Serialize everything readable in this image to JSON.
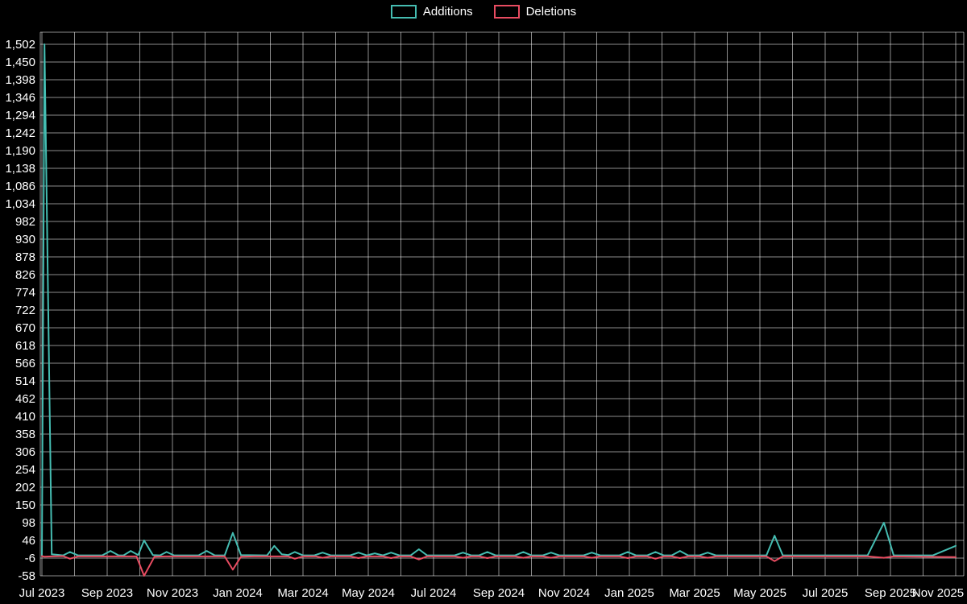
{
  "chart_data": {
    "type": "line",
    "title": "",
    "background": "#000000",
    "text_color": "#ffffff",
    "grid": true,
    "grid_color": "rgba(255,255,255,0.55)",
    "legend_position": "top-center",
    "x_unit": "months since Jul 2023 (weekly commit data)",
    "xlim": [
      0,
      28
    ],
    "ylim": [
      -58,
      1502
    ],
    "y_tick_step": 52,
    "y_ticks": [
      -58,
      -6,
      46,
      98,
      150,
      202,
      254,
      306,
      358,
      410,
      462,
      514,
      566,
      618,
      670,
      722,
      774,
      826,
      878,
      930,
      982,
      1034,
      1086,
      1138,
      1190,
      1242,
      1294,
      1346,
      1398,
      1450,
      1502
    ],
    "x_ticks": [
      {
        "t": 0,
        "label": "Jul 2023"
      },
      {
        "t": 2,
        "label": "Sep 2023"
      },
      {
        "t": 4,
        "label": "Nov 2023"
      },
      {
        "t": 6,
        "label": "Jan 2024"
      },
      {
        "t": 8,
        "label": "Mar 2024"
      },
      {
        "t": 10,
        "label": "May 2024"
      },
      {
        "t": 12,
        "label": "Jul 2024"
      },
      {
        "t": 14,
        "label": "Sep 2024"
      },
      {
        "t": 16,
        "label": "Nov 2024"
      },
      {
        "t": 18,
        "label": "Jan 2025"
      },
      {
        "t": 20,
        "label": "Mar 2025"
      },
      {
        "t": 22,
        "label": "May 2025"
      },
      {
        "t": 24,
        "label": "Jul 2025"
      },
      {
        "t": 26,
        "label": "Sep 2025"
      },
      {
        "t": 28,
        "label": "Nov 2025"
      }
    ],
    "series": [
      {
        "name": "Additions",
        "color": "#45bcb1",
        "points": [
          [
            0.0,
            2
          ],
          [
            0.08,
            1502
          ],
          [
            0.3,
            5
          ],
          [
            0.65,
            2
          ],
          [
            0.86,
            12
          ],
          [
            1.1,
            2
          ],
          [
            1.85,
            2
          ],
          [
            2.1,
            15
          ],
          [
            2.35,
            2
          ],
          [
            2.5,
            2
          ],
          [
            2.72,
            15
          ],
          [
            2.95,
            3
          ],
          [
            3.13,
            46
          ],
          [
            3.4,
            3
          ],
          [
            3.62,
            2
          ],
          [
            3.82,
            12
          ],
          [
            4.05,
            2
          ],
          [
            4.8,
            2
          ],
          [
            5.05,
            15
          ],
          [
            5.3,
            2
          ],
          [
            5.6,
            2
          ],
          [
            5.85,
            68
          ],
          [
            6.1,
            3
          ],
          [
            6.9,
            2
          ],
          [
            7.12,
            30
          ],
          [
            7.35,
            5
          ],
          [
            7.55,
            3
          ],
          [
            7.75,
            12
          ],
          [
            8.0,
            2
          ],
          [
            8.35,
            2
          ],
          [
            8.6,
            10
          ],
          [
            8.85,
            2
          ],
          [
            9.45,
            2
          ],
          [
            9.7,
            10
          ],
          [
            9.95,
            2
          ],
          [
            10.2,
            8
          ],
          [
            10.45,
            2
          ],
          [
            10.7,
            10
          ],
          [
            10.95,
            2
          ],
          [
            11.3,
            2
          ],
          [
            11.55,
            20
          ],
          [
            11.8,
            2
          ],
          [
            12.65,
            2
          ],
          [
            12.9,
            10
          ],
          [
            13.15,
            2
          ],
          [
            13.4,
            2
          ],
          [
            13.65,
            12
          ],
          [
            13.9,
            2
          ],
          [
            14.5,
            2
          ],
          [
            14.75,
            12
          ],
          [
            15.0,
            2
          ],
          [
            15.35,
            2
          ],
          [
            15.6,
            10
          ],
          [
            15.85,
            2
          ],
          [
            16.6,
            2
          ],
          [
            16.85,
            10
          ],
          [
            17.1,
            2
          ],
          [
            17.7,
            2
          ],
          [
            17.95,
            12
          ],
          [
            18.2,
            2
          ],
          [
            18.55,
            2
          ],
          [
            18.8,
            12
          ],
          [
            19.05,
            2
          ],
          [
            19.3,
            2
          ],
          [
            19.55,
            15
          ],
          [
            19.8,
            2
          ],
          [
            20.15,
            2
          ],
          [
            20.4,
            10
          ],
          [
            20.65,
            2
          ],
          [
            21.0,
            2
          ],
          [
            22.2,
            2
          ],
          [
            22.45,
            60
          ],
          [
            22.7,
            2
          ],
          [
            24.0,
            2
          ],
          [
            25.3,
            2
          ],
          [
            25.8,
            98
          ],
          [
            26.1,
            2
          ],
          [
            27.3,
            2
          ],
          [
            28.0,
            30
          ]
        ]
      },
      {
        "name": "Deletions",
        "color": "#e84c61",
        "points": [
          [
            0.0,
            0
          ],
          [
            0.08,
            -2
          ],
          [
            0.3,
            -1
          ],
          [
            0.65,
            0
          ],
          [
            0.86,
            -8
          ],
          [
            1.1,
            -1
          ],
          [
            2.9,
            -1
          ],
          [
            3.13,
            -58
          ],
          [
            3.45,
            -2
          ],
          [
            3.8,
            -1
          ],
          [
            5.6,
            -1
          ],
          [
            5.85,
            -40
          ],
          [
            6.1,
            -2
          ],
          [
            6.5,
            -1
          ],
          [
            7.55,
            -1
          ],
          [
            7.75,
            -8
          ],
          [
            8.0,
            -1
          ],
          [
            8.4,
            -1
          ],
          [
            8.6,
            -5
          ],
          [
            8.85,
            -1
          ],
          [
            9.45,
            -1
          ],
          [
            9.7,
            -6
          ],
          [
            9.95,
            -1
          ],
          [
            10.45,
            -1
          ],
          [
            10.7,
            -6
          ],
          [
            10.95,
            -1
          ],
          [
            11.3,
            -1
          ],
          [
            11.55,
            -10
          ],
          [
            11.8,
            -1
          ],
          [
            12.65,
            -1
          ],
          [
            12.9,
            -5
          ],
          [
            13.15,
            -1
          ],
          [
            13.4,
            -1
          ],
          [
            13.65,
            -6
          ],
          [
            13.9,
            -1
          ],
          [
            14.5,
            -1
          ],
          [
            14.75,
            -5
          ],
          [
            15.0,
            -1
          ],
          [
            15.35,
            -1
          ],
          [
            15.6,
            -5
          ],
          [
            15.85,
            -1
          ],
          [
            16.6,
            -1
          ],
          [
            16.85,
            -5
          ],
          [
            17.1,
            -1
          ],
          [
            17.7,
            -1
          ],
          [
            17.95,
            -6
          ],
          [
            18.2,
            -1
          ],
          [
            18.55,
            -1
          ],
          [
            18.8,
            -8
          ],
          [
            19.05,
            -1
          ],
          [
            19.3,
            -1
          ],
          [
            19.55,
            -6
          ],
          [
            19.8,
            -1
          ],
          [
            20.15,
            -1
          ],
          [
            20.4,
            -5
          ],
          [
            20.65,
            -1
          ],
          [
            22.2,
            -1
          ],
          [
            22.45,
            -15
          ],
          [
            22.7,
            -1
          ],
          [
            25.3,
            -1
          ],
          [
            25.8,
            -5
          ],
          [
            26.1,
            -1
          ],
          [
            28.0,
            -3
          ]
        ]
      }
    ]
  }
}
